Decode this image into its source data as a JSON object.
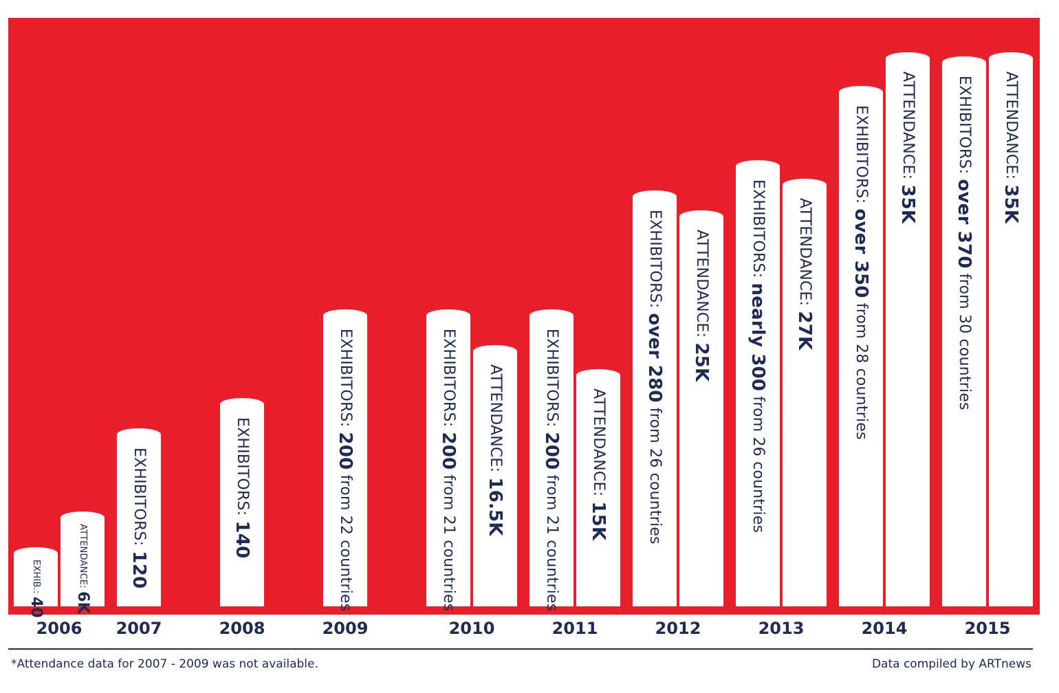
{
  "chart_data": {
    "type": "bar",
    "title": "",
    "categories": [
      "2006",
      "2007",
      "2008",
      "2009",
      "2010",
      "2011",
      "2012",
      "2013",
      "2014",
      "2015"
    ],
    "series": [
      {
        "name": "Exhibitors",
        "values": [
          40,
          120,
          140,
          200,
          200,
          200,
          280,
          300,
          350,
          370
        ]
      },
      {
        "name": "Attendance",
        "values": [
          6000,
          null,
          null,
          null,
          16500,
          15000,
          25000,
          27000,
          35000,
          35000
        ]
      }
    ],
    "bars": [
      {
        "year": "2006",
        "series": "Exhibitors",
        "value": 40,
        "prefix": "EXHIB.: ",
        "strong": "40",
        "suffix": "",
        "small": true
      },
      {
        "year": "2006",
        "series": "Attendance",
        "value": 6000,
        "prefix": "ATTENDANCE: ",
        "strong": "6K",
        "suffix": "",
        "small": true
      },
      {
        "year": "2007",
        "series": "Exhibitors",
        "value": 120,
        "prefix": "EXHIBITORS: ",
        "strong": "120",
        "suffix": ""
      },
      {
        "year": "2008",
        "series": "Exhibitors",
        "value": 140,
        "prefix": "EXHIBITORS: ",
        "strong": "140",
        "suffix": ""
      },
      {
        "year": "2009",
        "series": "Exhibitors",
        "value": 200,
        "prefix": "EXHIBITORS: ",
        "strong": "200",
        "suffix": " from 22 countries"
      },
      {
        "year": "2010",
        "series": "Exhibitors",
        "value": 200,
        "prefix": "EXHIBITORS: ",
        "strong": "200",
        "suffix": " from 21 countries"
      },
      {
        "year": "2010",
        "series": "Attendance",
        "value": 16500,
        "prefix": "ATTENDANCE: ",
        "strong": "16.5K",
        "suffix": ""
      },
      {
        "year": "2011",
        "series": "Exhibitors",
        "value": 200,
        "prefix": "EXHIBITORS: ",
        "strong": "200",
        "suffix": " from 21 countries"
      },
      {
        "year": "2011",
        "series": "Attendance",
        "value": 15000,
        "prefix": "ATTENDANCE: ",
        "strong": "15K",
        "suffix": ""
      },
      {
        "year": "2012",
        "series": "Exhibitors",
        "value": 280,
        "prefix": "EXHIBITORS: ",
        "strong": "over 280",
        "suffix": " from 26 countries"
      },
      {
        "year": "2012",
        "series": "Attendance",
        "value": 25000,
        "prefix": "ATTENDANCE: ",
        "strong": "25K",
        "suffix": ""
      },
      {
        "year": "2013",
        "series": "Exhibitors",
        "value": 300,
        "prefix": "EXHIBITORS: ",
        "strong": "nearly 300",
        "suffix": " from 26 countries"
      },
      {
        "year": "2013",
        "series": "Attendance",
        "value": 27000,
        "prefix": "ATTENDANCE: ",
        "strong": "27K",
        "suffix": ""
      },
      {
        "year": "2014",
        "series": "Exhibitors",
        "value": 350,
        "prefix": "EXHIBITORS: ",
        "strong": "over 350",
        "suffix": " from 28 countries"
      },
      {
        "year": "2014",
        "series": "Attendance",
        "value": 35000,
        "prefix": "ATTENDANCE: ",
        "strong": "35K",
        "suffix": ""
      },
      {
        "year": "2015",
        "series": "Exhibitors",
        "value": 370,
        "prefix": "EXHIBITORS: ",
        "strong": "over 370",
        "suffix": " from 30 countries"
      },
      {
        "year": "2015",
        "series": "Attendance",
        "value": 35000,
        "prefix": "ATTENDANCE: ",
        "strong": "35K",
        "suffix": ""
      }
    ],
    "xlabel": "",
    "ylabel": "",
    "exhibitors_ylim": [
      0,
      400
    ],
    "attendance_ylim": [
      0,
      37000
    ]
  },
  "footer": {
    "note": "*Attendance data for 2007 - 2009 was not available.",
    "credit": "Data compiled by ARTnews"
  },
  "colors": {
    "background": "#e8202c",
    "bar": "#ffffff",
    "text": "#1f2a55"
  }
}
